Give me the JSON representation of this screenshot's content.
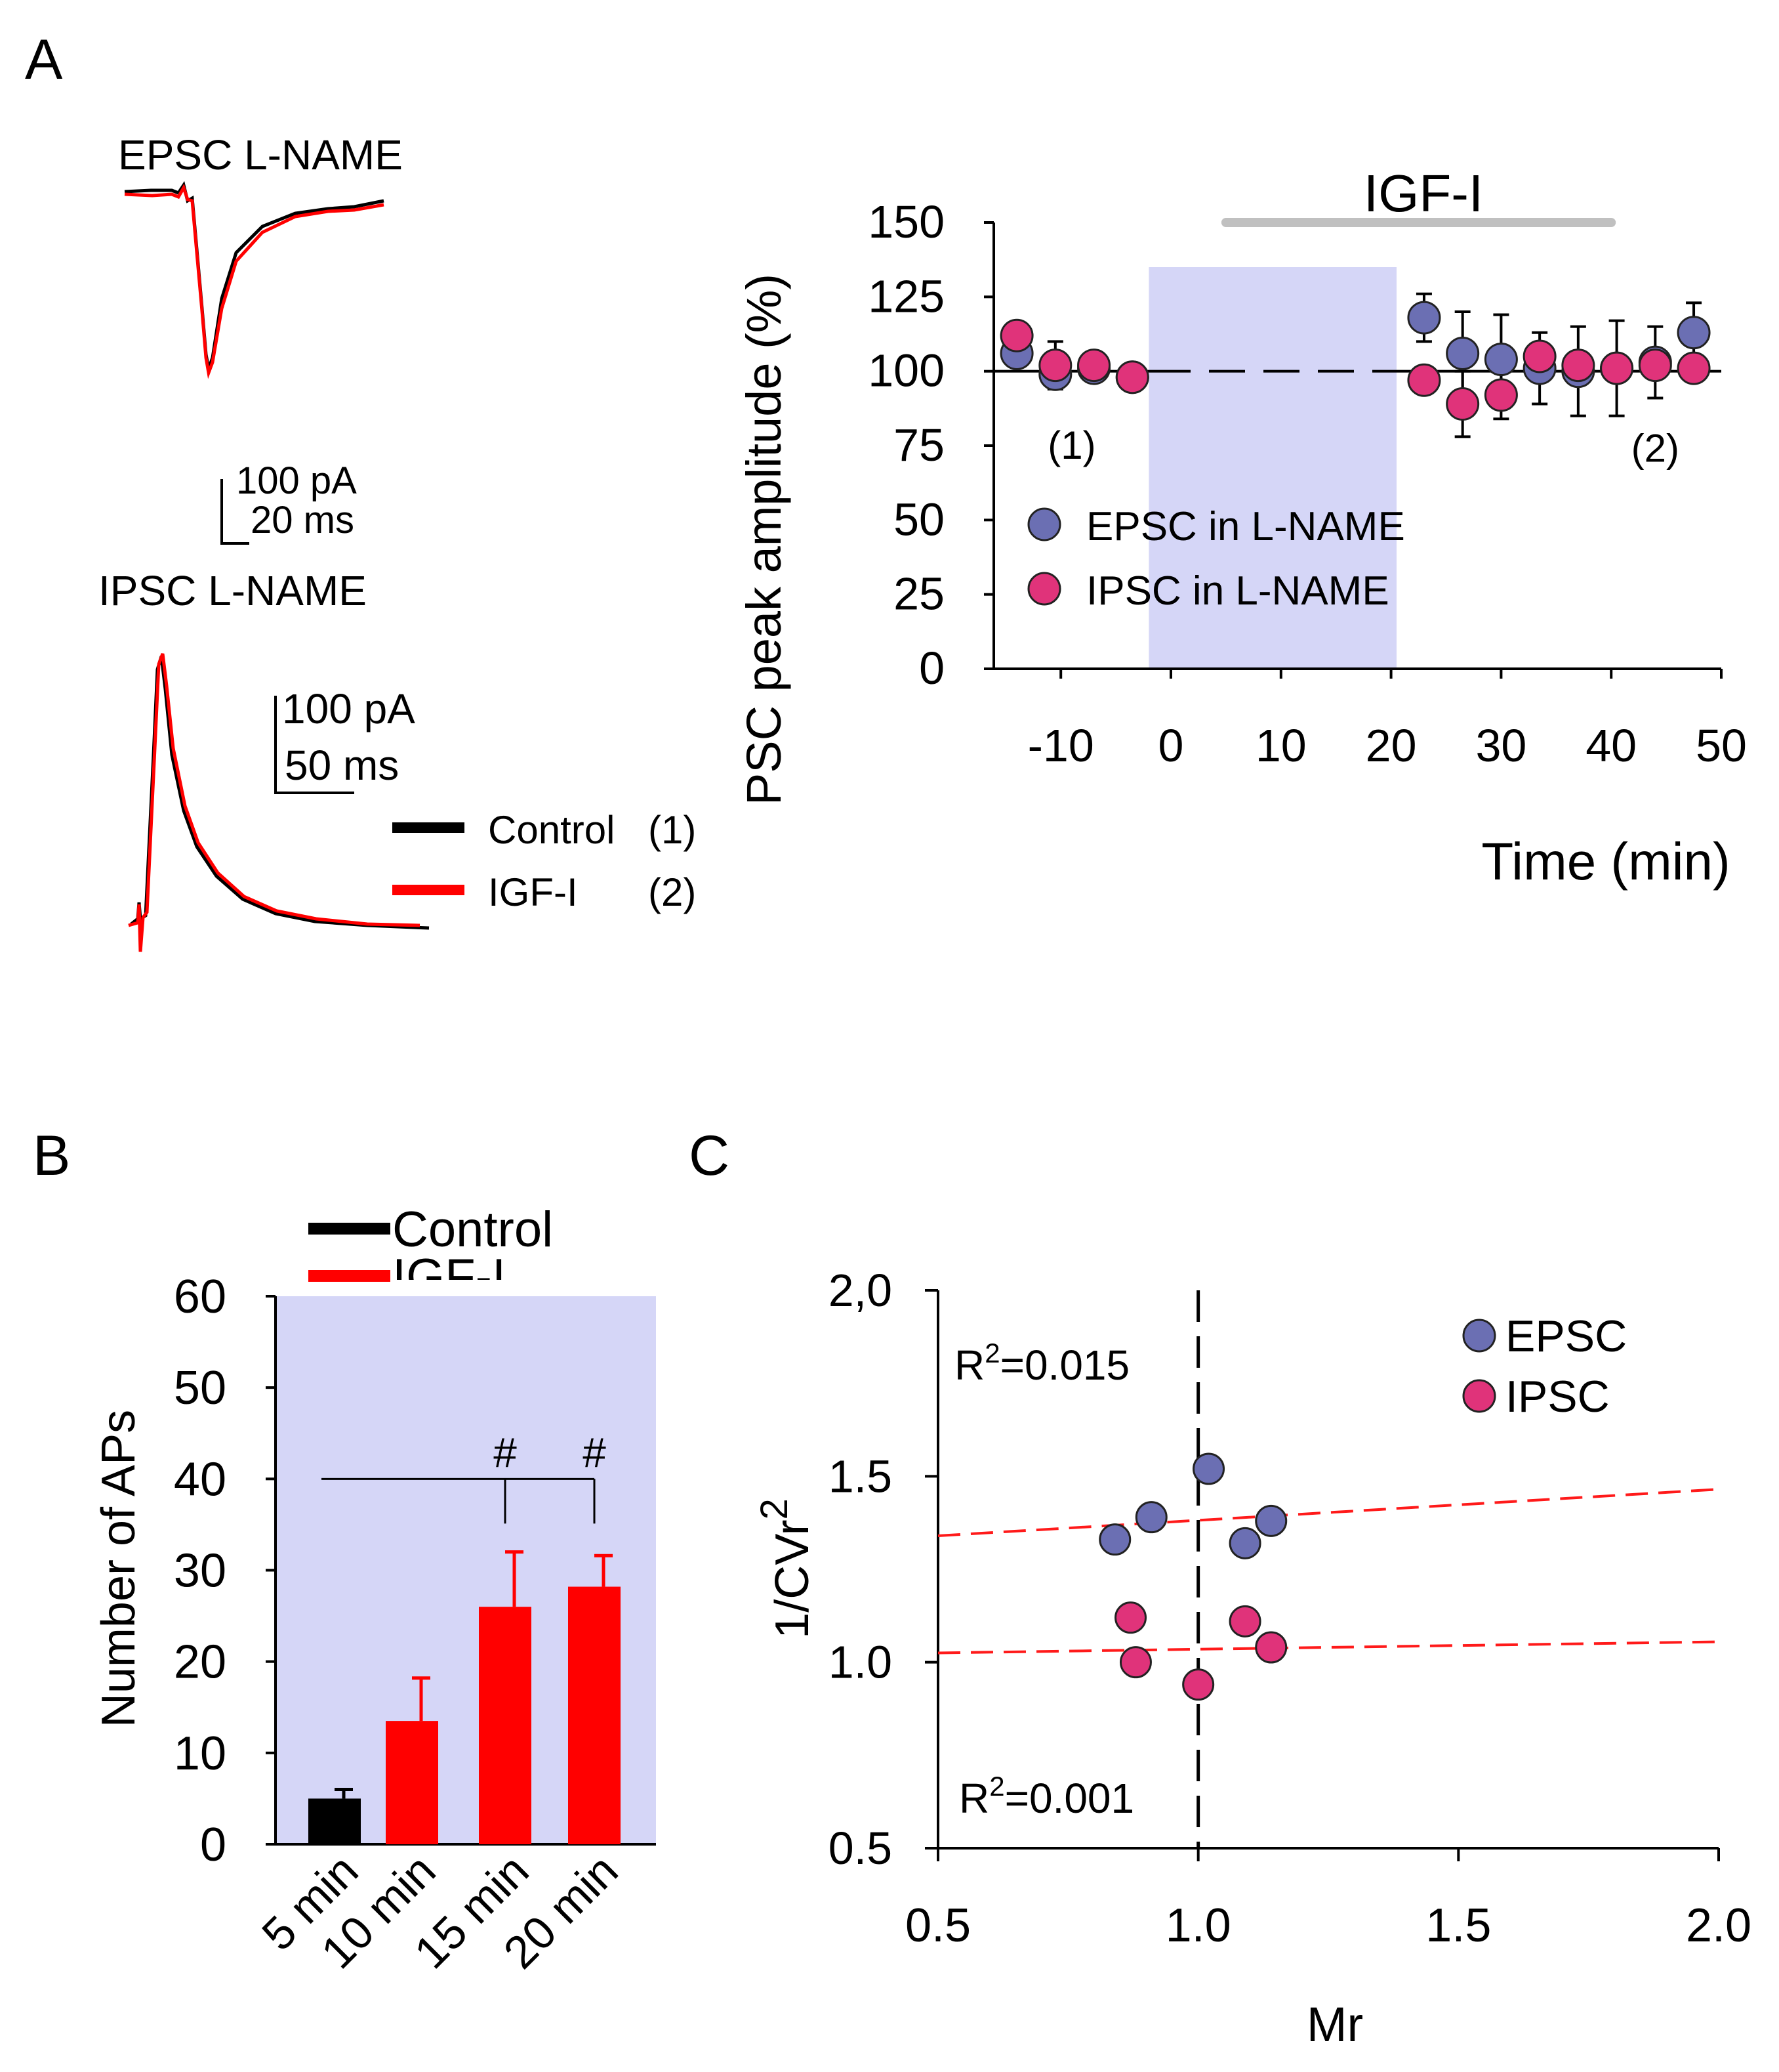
{
  "panels": {
    "a": "A",
    "b": "B",
    "c": "C"
  },
  "colors": {
    "epsc": "#6b6fb3",
    "ipsc": "#e0337a",
    "control": "#000000",
    "igf": "#ff0000",
    "shade": "#d5d6f7",
    "igf_bar": "#c0c0c0",
    "fit": "#ff1a1a",
    "epsc_title": "#7b6fe6",
    "ipsc_title": "#cc1f9a"
  },
  "traces": {
    "epsc_title": "EPSC L-NAME",
    "ipsc_title": "IPSC L-NAME",
    "epsc_scale_amp": "100 pA",
    "epsc_scale_time": "20 ms",
    "ipsc_scale_amp": "100 pA",
    "ipsc_scale_time": "50 ms",
    "legend": [
      {
        "label": "Control",
        "tag": "(1)",
        "color": "#000000"
      },
      {
        "label": "IGF-I",
        "tag": "(2)",
        "color": "#ff0000"
      }
    ]
  },
  "chart_data": [
    {
      "type": "scatter",
      "id": "A",
      "title": "IGF-I",
      "igf_bar": [
        5,
        40
      ],
      "shaded_x": [
        -2,
        20.5
      ],
      "xlabel": "Time (min)",
      "ylabel": "PSC peak amplitude (%)",
      "xlim": [
        -17,
        50
      ],
      "ylim": [
        0,
        150
      ],
      "xticks": [
        -10,
        0,
        10,
        20,
        30,
        40,
        50
      ],
      "yticks": [
        0,
        25,
        50,
        75,
        100,
        125,
        150
      ],
      "reference_y": 100,
      "annotations": [
        {
          "text": "(1)",
          "x": -9,
          "y": 75
        },
        {
          "text": "(2)",
          "x": 44,
          "y": 74
        }
      ],
      "series": [
        {
          "name": "EPSC in L-NAME",
          "color": "#6b6fb3",
          "x": [
            -14,
            -10.5,
            -7,
            -3.5,
            23,
            26.5,
            30,
            33.5,
            37,
            40.5,
            44,
            47.5
          ],
          "y": [
            106,
            99,
            101,
            98,
            118,
            106,
            104,
            101,
            100,
            101,
            103,
            113
          ],
          "err": [
            0,
            0,
            0,
            0,
            8,
            14,
            15,
            12,
            15,
            16,
            12,
            10
          ]
        },
        {
          "name": "IPSC in L-NAME",
          "color": "#e0337a",
          "x": [
            -14,
            -10.5,
            -7,
            -3.5,
            23,
            26.5,
            30,
            33.5,
            37,
            40.5,
            44,
            47.5
          ],
          "y": [
            112,
            102,
            102,
            98,
            97,
            89,
            92,
            105,
            102,
            101,
            102,
            101
          ],
          "err": [
            0,
            8,
            0,
            0,
            0,
            11,
            8,
            0,
            0,
            0,
            0,
            0
          ]
        }
      ]
    },
    {
      "type": "bar",
      "id": "B",
      "categories": [
        "5 min",
        "10 min",
        "15 min",
        "20 min"
      ],
      "values": [
        5,
        13.5,
        26,
        28.2
      ],
      "errors": [
        1,
        4.7,
        6,
        3.4
      ],
      "colors": [
        "#000000",
        "#ff0000",
        "#ff0000",
        "#ff0000"
      ],
      "ylabel": "Number of APs",
      "ylim": [
        0,
        60
      ],
      "yticks": [
        0,
        10,
        20,
        30,
        40,
        50,
        60
      ],
      "legend": [
        {
          "label": "Control",
          "color": "#000000"
        },
        {
          "label": "IGF-I",
          "color": "#ff0000"
        }
      ],
      "significance": {
        "marker": "#",
        "line_y": 40,
        "from": "5 min",
        "to": [
          "15 min",
          "20 min"
        ]
      }
    },
    {
      "type": "scatter",
      "id": "C",
      "xlabel": "Mr",
      "ylabel": "1/CVr",
      "ylabel_sup": "2",
      "xlim": [
        0.5,
        2.0
      ],
      "ylim": [
        0.5,
        2.0
      ],
      "xticks": [
        "0.5",
        "1.0",
        "1.5",
        "2.0"
      ],
      "yticks": [
        "0.5",
        "1.0",
        "1.5",
        "2,0"
      ],
      "vline_x": 1.0,
      "r2_labels": [
        {
          "text": "R",
          "sup": "2",
          "rest": "=0.015"
        },
        {
          "text": "R",
          "sup": "2",
          "rest": "=0.001"
        }
      ],
      "series": [
        {
          "name": "EPSC",
          "color": "#6b6fb3",
          "x": [
            0.84,
            0.91,
            1.02,
            1.09,
            1.14
          ],
          "y": [
            1.33,
            1.39,
            1.52,
            1.32,
            1.38
          ],
          "fit": [
            [
              0.5,
              1.34
            ],
            [
              2.0,
              1.465
            ]
          ]
        },
        {
          "name": "IPSC",
          "color": "#e0337a",
          "x": [
            0.87,
            0.88,
            1.0,
            1.09,
            1.14
          ],
          "y": [
            1.12,
            1.0,
            0.94,
            1.11,
            1.04
          ],
          "fit": [
            [
              0.5,
              1.025
            ],
            [
              2.0,
              1.055
            ]
          ]
        }
      ]
    }
  ]
}
